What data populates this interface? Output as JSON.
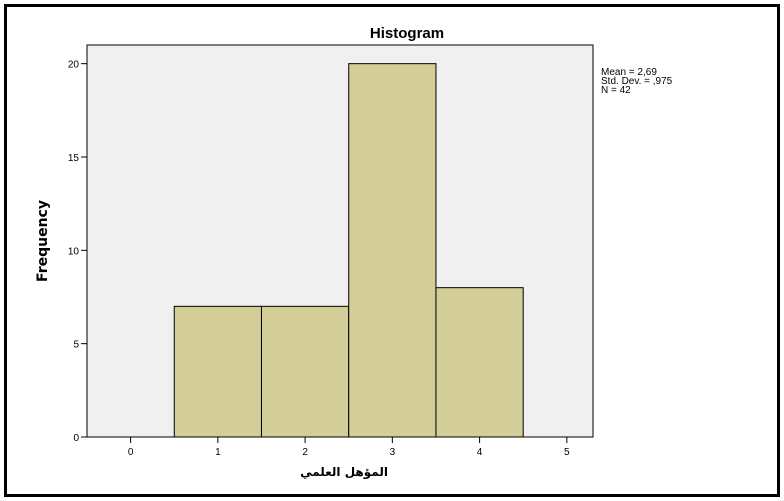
{
  "chart_data": {
    "type": "bar",
    "title": "Histogram",
    "xlabel": "المؤهل العلمي",
    "ylabel": "Frequency",
    "x_ticks": [
      0,
      1,
      2,
      3,
      4,
      5
    ],
    "y_ticks": [
      0,
      5,
      10,
      15,
      20
    ],
    "xlim": [
      -0.5,
      5.3
    ],
    "ylim": [
      0,
      21
    ],
    "bin_width": 1,
    "bins": [
      {
        "center": 1,
        "value": 7
      },
      {
        "center": 2,
        "value": 7
      },
      {
        "center": 3,
        "value": 20
      },
      {
        "center": 4,
        "value": 8
      }
    ],
    "stats": [
      "Mean = 2,69",
      "Std. Dev. = ,975",
      "N = 42"
    ],
    "colors": {
      "bar": "#d3cd97",
      "plot_bg": "#f0f0f0",
      "stroke": "#000000"
    }
  }
}
